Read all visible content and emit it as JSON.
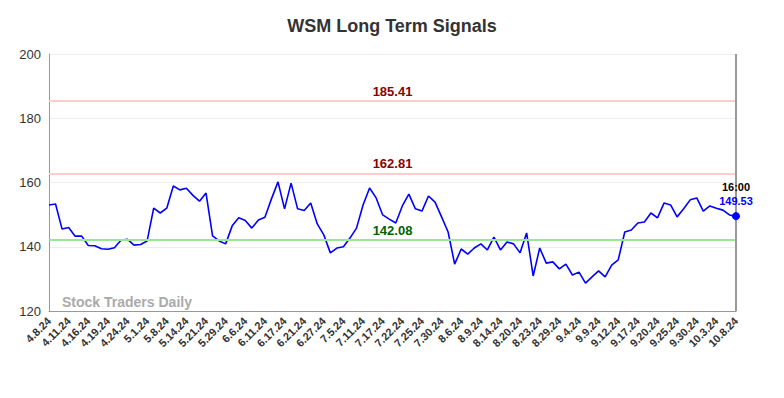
{
  "chart_data": {
    "type": "line",
    "title": "WSM Long Term Signals",
    "categories": [
      "4.8.24",
      null,
      null,
      "4.11.24",
      null,
      null,
      "4.16.24",
      null,
      null,
      "4.19.24",
      null,
      null,
      "4.24.24",
      null,
      null,
      "5.1.24",
      null,
      null,
      "5.8.24",
      null,
      null,
      "5.14.24",
      null,
      null,
      "5.21.24",
      null,
      null,
      "5.29.24",
      null,
      null,
      "6.6.24",
      null,
      null,
      "6.11.24",
      null,
      null,
      "6.17.24",
      null,
      null,
      "6.21.24",
      null,
      null,
      "6.27.24",
      null,
      null,
      "7.5.24",
      null,
      null,
      "7.11.24",
      null,
      null,
      "7.17.24",
      null,
      null,
      "7.22.24",
      null,
      null,
      "7.25.24",
      null,
      null,
      "7.30.24",
      null,
      null,
      "8.6.24",
      null,
      null,
      "8.9.24",
      null,
      null,
      "8.14.24",
      null,
      null,
      "8.20.24",
      null,
      null,
      "8.23.24",
      null,
      null,
      "8.29.24",
      null,
      null,
      "9.4.24",
      null,
      null,
      "9.9.24",
      null,
      null,
      "9.12.24",
      null,
      null,
      "9.17.24",
      null,
      null,
      "9.20.24",
      null,
      null,
      "9.25.24",
      null,
      null,
      "9.30.24",
      null,
      null,
      "10.3.24",
      null,
      null,
      "10.8.24"
    ],
    "values": [
      153.0,
      153.3,
      145.5,
      146.0,
      143.3,
      143.3,
      140.4,
      140.3,
      139.4,
      139.2,
      139.7,
      142.0,
      142.3,
      140.5,
      140.7,
      141.8,
      152.0,
      150.5,
      152.0,
      158.9,
      157.7,
      158.2,
      156.0,
      154.2,
      156.7,
      143.4,
      141.8,
      140.9,
      146.5,
      149.0,
      148.2,
      145.8,
      148.3,
      149.2,
      154.9,
      160.2,
      151.8,
      159.8,
      151.8,
      151.3,
      153.6,
      147.1,
      143.7,
      138.1,
      139.6,
      140.0,
      142.7,
      145.8,
      153.0,
      158.3,
      155.2,
      149.9,
      148.6,
      147.4,
      152.7,
      156.4,
      151.8,
      151.1,
      155.8,
      153.9,
      149.3,
      144.6,
      134.6,
      139.3,
      137.7,
      139.6,
      140.9,
      139.0,
      143.0,
      139.0,
      141.5,
      140.9,
      138.1,
      144.3,
      130.9,
      139.6,
      134.9,
      135.3,
      133.1,
      134.6,
      131.2,
      132.1,
      128.7,
      130.6,
      132.5,
      130.6,
      134.3,
      135.9,
      144.6,
      145.2,
      147.4,
      147.7,
      150.5,
      149.0,
      153.6,
      153.0,
      149.3,
      151.8,
      154.6,
      155.2,
      151.1,
      152.7,
      152.0,
      151.4,
      149.9,
      149.53
    ],
    "color": "#0000ff",
    "ylim": [
      120,
      200
    ],
    "yticks": [
      120,
      140,
      160,
      180,
      200
    ],
    "grid": true,
    "reference_lines": [
      {
        "value": 185.41,
        "color": "#ffcccc",
        "label_color": "#8b0000"
      },
      {
        "value": 162.81,
        "color": "#ffcccc",
        "label_color": "#8b0000"
      },
      {
        "value": 142.08,
        "color": "#99e699",
        "label_color": "#006400"
      }
    ],
    "time_label": "16:00",
    "watermark": "Stock Traders Daily"
  }
}
